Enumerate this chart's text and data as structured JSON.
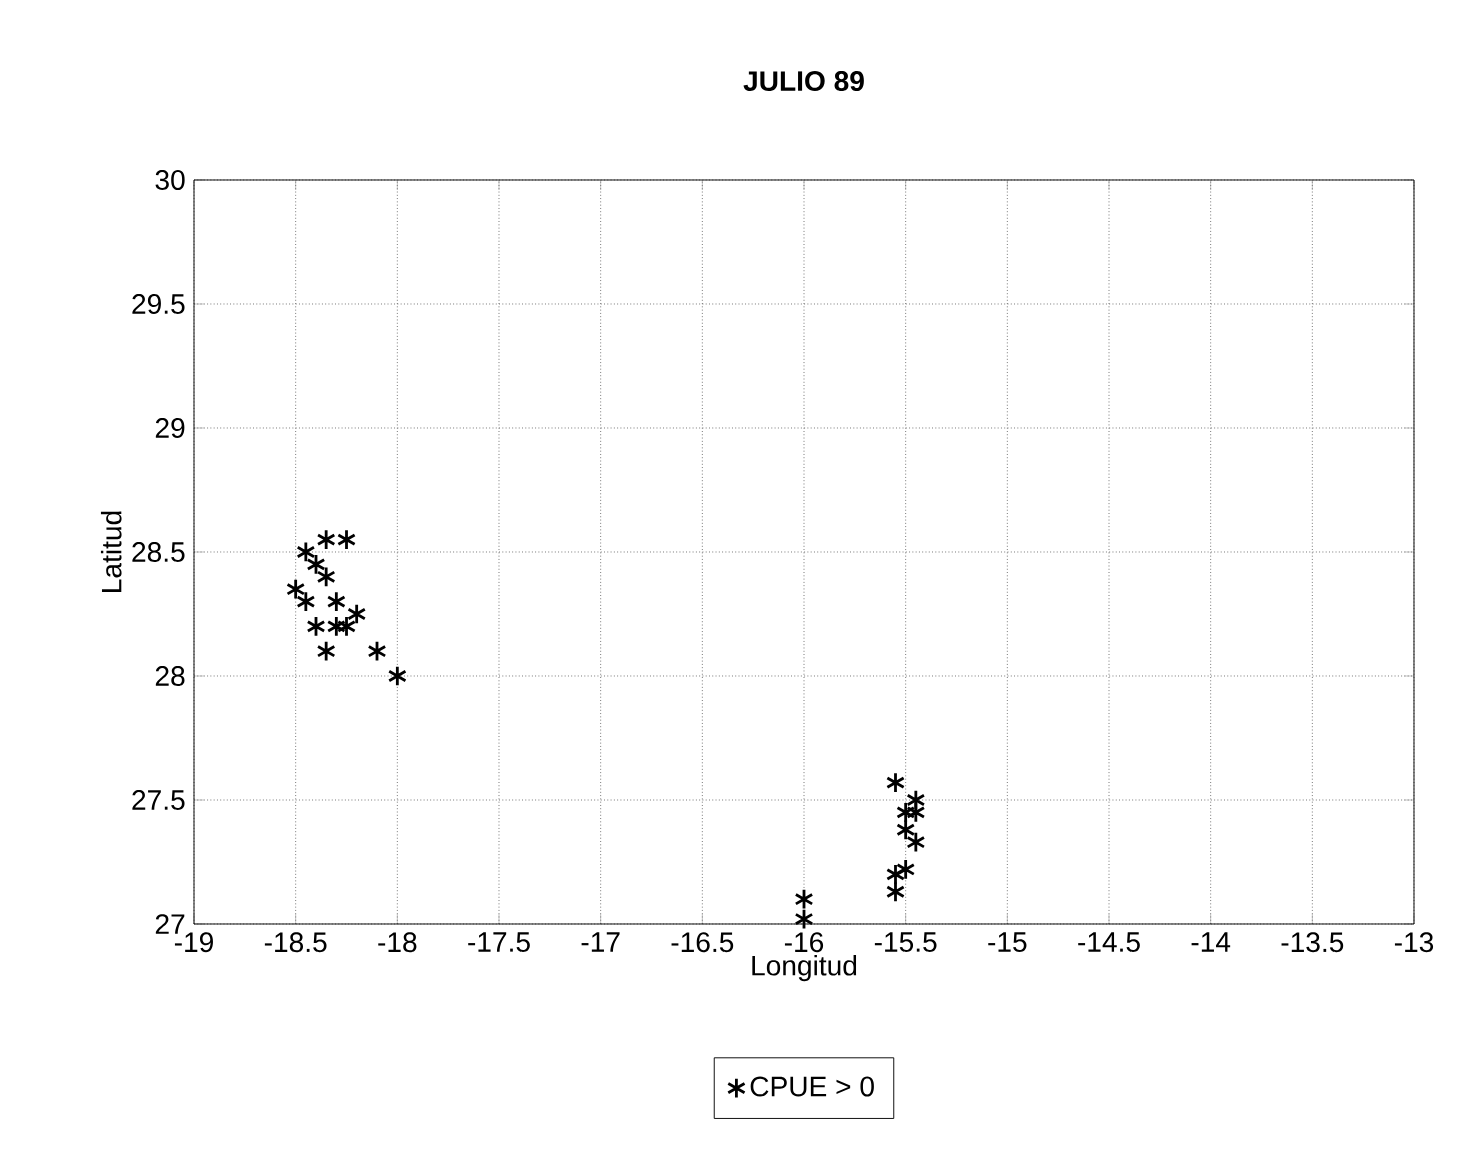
{
  "chart_data": {
    "type": "scatter",
    "title": "JULIO 89",
    "xlabel": "Longitud",
    "ylabel": "Latitud",
    "xlim": [
      -19,
      -13
    ],
    "ylim": [
      27,
      30
    ],
    "xticks": [
      -19,
      -18.5,
      -18,
      -17.5,
      -17,
      -16.5,
      -16,
      -15.5,
      -15,
      -14.5,
      -14,
      -13.5,
      -13
    ],
    "yticks": [
      27,
      27.5,
      28,
      28.5,
      29,
      29.5,
      30
    ],
    "grid": true,
    "legend": "bottom",
    "marker": "cross",
    "series": [
      {
        "name": "CPUE > 0",
        "color": "#000000",
        "x": [
          -18.25,
          -18.35,
          -18.45,
          -18.5,
          -18.45,
          -18.35,
          -18.4,
          -18.3,
          -18.4,
          -18.3,
          -18.25,
          -18.2,
          -18.35,
          -18.1,
          -18.0,
          -15.55,
          -15.45,
          -15.5,
          -15.45,
          -15.5,
          -15.45,
          -15.55,
          -15.55,
          -15.5,
          -16.0,
          -16.0
        ],
        "values": [
          28.55,
          28.55,
          28.5,
          28.35,
          28.3,
          28.4,
          28.45,
          28.3,
          28.2,
          28.2,
          28.2,
          28.25,
          28.1,
          28.1,
          28.0,
          27.57,
          27.5,
          27.45,
          27.45,
          27.38,
          27.33,
          27.2,
          27.13,
          27.22,
          27.1,
          27.02
        ]
      }
    ]
  }
}
